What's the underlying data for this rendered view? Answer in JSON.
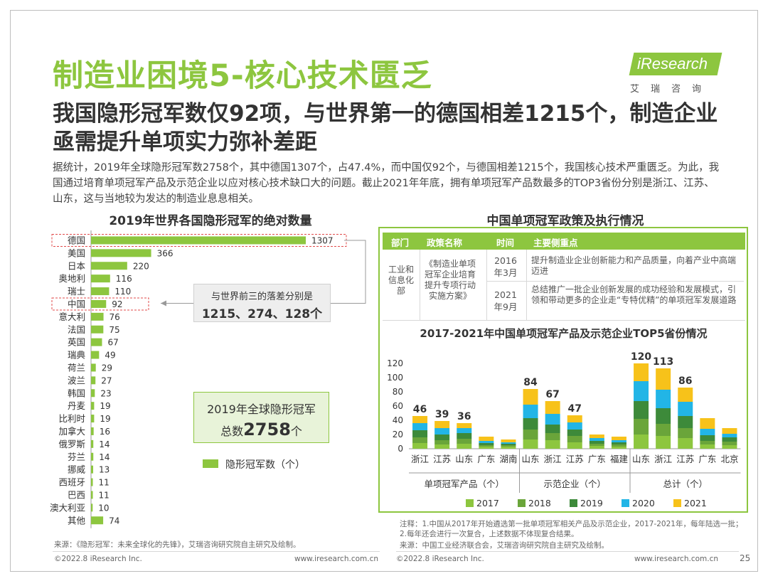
{
  "header": {
    "title": "制造业困境5-核心技术匮乏",
    "subtitle": "我国隐形冠军数仅92项，与世界第一的德国相差1215个，制造企业亟需提升单项实力弥补差距",
    "description": "据统计，2019年全球隐形冠军数2758个，其中德国1307个，占47.4%，而中国仅92个，与德国相差1215个，我国核心技术严重匮乏。为此，我国通过培育单项冠军产品及示范企业以应对核心技术缺口大的问题。截止2021年年底，拥有单项冠军产品数最多的TOP3省份分别是浙江、江苏、山东，这与当地较为发达的制造业息息相关。"
  },
  "logo": {
    "name": "iResearch",
    "sub": "艾瑞咨询"
  },
  "left_panel": {
    "title": "2019年世界各国隐形冠军的绝对数量",
    "gap_text_1": "与世界前三的落差分别是",
    "gap_text_2": "1215、274、128个",
    "total_text_1": "2019年全球隐形冠军",
    "total_prefix": "总数",
    "total_value": "2758",
    "total_suffix": "个",
    "legend": "隐形冠军数（个）",
    "source": "来源：《隐形冠军：未来全球化的先锋》，艾瑞咨询研究院自主研究及绘制。",
    "copyright": "©2022.8 iResearch Inc.",
    "url": "www.iresearch.com.cn"
  },
  "right_panel": {
    "title": "中国单项冠军政策及执行情况",
    "table": {
      "headers": [
        "部门",
        "政策名称",
        "时间",
        "主要侧重点"
      ],
      "dept": "工业和信息化部",
      "policy": "《制造业单项冠军企业培育提升专项行动实施方案》",
      "rows": [
        {
          "time": "2016年3月",
          "focus": "提升制造业企业创新能力和产品质量，向着产业中高端迈进"
        },
        {
          "time": "2021年9月",
          "focus": "总结推广一批企业创新发展的成功经验和发展模式，引领和带动更多的企业走“专特优精”的单项冠军发展道路"
        }
      ]
    },
    "chart2_title": "2017-2021年中国单项冠军产品及示范企业TOP5省份情况",
    "note": "注释：1.中国从2017年开始遴选第一批单项冠军相关产品及示范企业，2017-2021年，每年陆选一批；2.每年还会进行一次复合，上述数据不体现复合结果。",
    "source": "来源：中国工业经济联合会，艾瑞咨询研究院自主研究及绘制。",
    "copyright": "©2022.8 iResearch Inc.",
    "url": "www.iresearch.com.cn",
    "page": "25"
  },
  "colors": {
    "accent": "#8dc63f",
    "s2017": "#8dc63f",
    "s2018": "#6aa53a",
    "s2019": "#3d8a3a",
    "s2020": "#22b5e6",
    "s2021": "#f7c21a"
  },
  "chart_data": [
    {
      "type": "bar",
      "orientation": "horizontal",
      "title": "2019年世界各国隐形冠军的绝对数量",
      "categories": [
        "德国",
        "美国",
        "日本",
        "奥地利",
        "瑞士",
        "中国",
        "意大利",
        "法国",
        "英国",
        "瑞典",
        "荷兰",
        "波兰",
        "韩国",
        "丹麦",
        "比利时",
        "加拿大",
        "俄罗斯",
        "芬兰",
        "挪威",
        "西班牙",
        "巴西",
        "澳大利亚",
        "其他"
      ],
      "values": [
        1307,
        366,
        220,
        116,
        110,
        92,
        76,
        75,
        67,
        49,
        29,
        27,
        23,
        19,
        19,
        16,
        14,
        14,
        13,
        11,
        11,
        10,
        74
      ],
      "highlighted": [
        "德国",
        "中国"
      ],
      "legend": "隐形冠军数（个）"
    },
    {
      "type": "bar",
      "stacked": true,
      "title": "2017-2021年中国单项冠军产品及示范企业TOP5省份情况",
      "groups": [
        {
          "label": "单项冠军产品（个）",
          "categories": [
            "浙江",
            "江苏",
            "山东",
            "广东",
            "湖南"
          ],
          "totals": [
            46,
            39,
            36,
            null,
            null
          ]
        },
        {
          "label": "示范企业（个）",
          "categories": [
            "山东",
            "浙江",
            "江苏",
            "广东",
            "福建"
          ],
          "totals": [
            84,
            67,
            47,
            null,
            null
          ]
        },
        {
          "label": "总计（个）",
          "categories": [
            "山东",
            "浙江",
            "江苏",
            "广东",
            "北京"
          ],
          "totals": [
            120,
            113,
            86,
            null,
            null
          ]
        }
      ],
      "series": [
        {
          "name": "2017",
          "values": [
            8,
            6,
            7,
            3,
            3,
            13,
            12,
            9,
            4,
            3,
            20,
            18,
            15,
            6,
            5
          ]
        },
        {
          "name": "2018",
          "values": [
            8,
            6,
            7,
            2,
            2,
            14,
            10,
            9,
            3,
            3,
            22,
            17,
            14,
            5,
            5
          ]
        },
        {
          "name": "2019",
          "values": [
            10,
            8,
            8,
            3,
            2,
            16,
            12,
            9,
            4,
            3,
            25,
            22,
            17,
            8,
            6
          ]
        },
        {
          "name": "2020",
          "values": [
            10,
            9,
            7,
            3,
            2,
            19,
            15,
            10,
            4,
            3,
            28,
            26,
            20,
            9,
            5
          ]
        },
        {
          "name": "2021",
          "values": [
            10,
            10,
            7,
            6,
            4,
            22,
            18,
            10,
            5,
            5,
            25,
            30,
            20,
            15,
            8
          ]
        }
      ],
      "ylim": [
        0,
        120
      ],
      "yticks": [
        0,
        20,
        40,
        60,
        80,
        100,
        120
      ]
    }
  ]
}
